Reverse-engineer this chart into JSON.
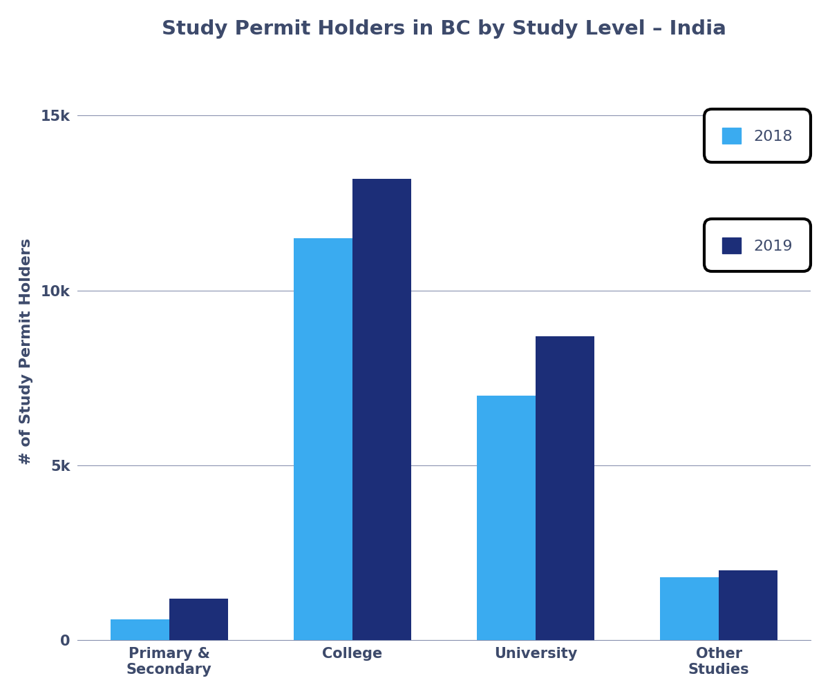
{
  "title": "Study Permit Holders in BC by Study Level – India",
  "ylabel": "# of Study Permit Holders",
  "categories": [
    "Primary &\nSecondary",
    "College",
    "University",
    "Other\nStudies"
  ],
  "values_2018": [
    600,
    11500,
    7000,
    1800
  ],
  "values_2019": [
    1200,
    13200,
    8700,
    2000
  ],
  "color_2018": "#3AABF0",
  "color_2019": "#1C2E78",
  "background_color": "#FFFFFF",
  "grid_color": "#8A92B0",
  "yticks": [
    0,
    5000,
    10000,
    15000
  ],
  "ytick_labels": [
    "0",
    "5k",
    "10k",
    "15k"
  ],
  "ylim": [
    0,
    16500
  ],
  "title_fontsize": 21,
  "label_fontsize": 16,
  "tick_fontsize": 15,
  "legend_fontsize": 16,
  "bar_width": 0.32,
  "legend_labels": [
    "2018",
    "2019"
  ],
  "text_color": "#3D4A6B"
}
